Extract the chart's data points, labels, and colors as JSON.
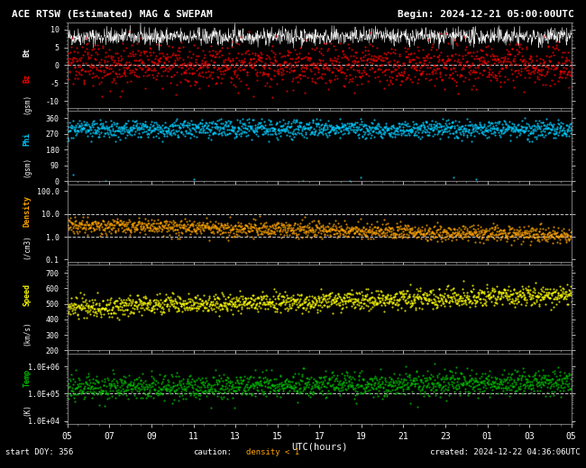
{
  "title": "ACE RTSW (Estimated) MAG & SWEPAM",
  "begin_label": "Begin: 2024-12-21 05:00:00UTC",
  "start_doy": "start DOY: 356",
  "caution": "caution:",
  "density_caution": "density < 1",
  "created": "created: 2024-12-22 04:36:06UTC",
  "bg_color": "#000000",
  "fg_color": "#ffffff",
  "xlabel": "UTC(hours)",
  "x_tick_labels": [
    "05",
    "07",
    "09",
    "11",
    "13",
    "15",
    "17",
    "19",
    "21",
    "23",
    "01",
    "03",
    "05"
  ],
  "n_points": 1440,
  "panel1_ylabel": "Bt  Bz (gsm)",
  "panel1_ylim": [
    -12,
    12
  ],
  "panel1_yticks": [
    -10,
    -5,
    0,
    5,
    10
  ],
  "panel1_bt_color": "#ffffff",
  "panel1_bz_color": "#ff0000",
  "panel2_ylabel": "Phi (gsm)",
  "panel2_ylim": [
    0,
    400
  ],
  "panel2_yticks": [
    0,
    90,
    180,
    270,
    360
  ],
  "panel2_color": "#00ccff",
  "panel3_ylabel": "Density (/cm3)",
  "panel3_ylim": [
    0.08,
    200
  ],
  "panel3_ytick_vals": [
    0.1,
    1.0,
    10.0,
    100.0
  ],
  "panel3_ytick_labels": [
    "0.1",
    "1.0",
    "10.0",
    "100.0"
  ],
  "panel3_color": "#ffa500",
  "panel3_hlines": [
    1.0,
    10.0
  ],
  "panel4_ylabel": "Speed (km/s)",
  "panel4_ylim": [
    200,
    750
  ],
  "panel4_yticks": [
    200,
    300,
    400,
    500,
    600,
    700
  ],
  "panel4_color": "#ffff00",
  "panel5_ylabel": "Temp (K)",
  "panel5_ylim_log": [
    8000,
    3000000
  ],
  "panel5_color": "#00bb00",
  "panel5_ytick_vals": [
    10000,
    100000,
    1000000
  ],
  "panel5_ytick_labels": [
    "1.0E+04",
    "1.0E+05",
    "1.0E+06"
  ],
  "panel5_hlines": [
    100000
  ],
  "dashed_line_color": "#ffffff",
  "tick_label_color": "#ffffff",
  "panel_heights": [
    2.2,
    1.8,
    2.0,
    2.2,
    1.8
  ]
}
